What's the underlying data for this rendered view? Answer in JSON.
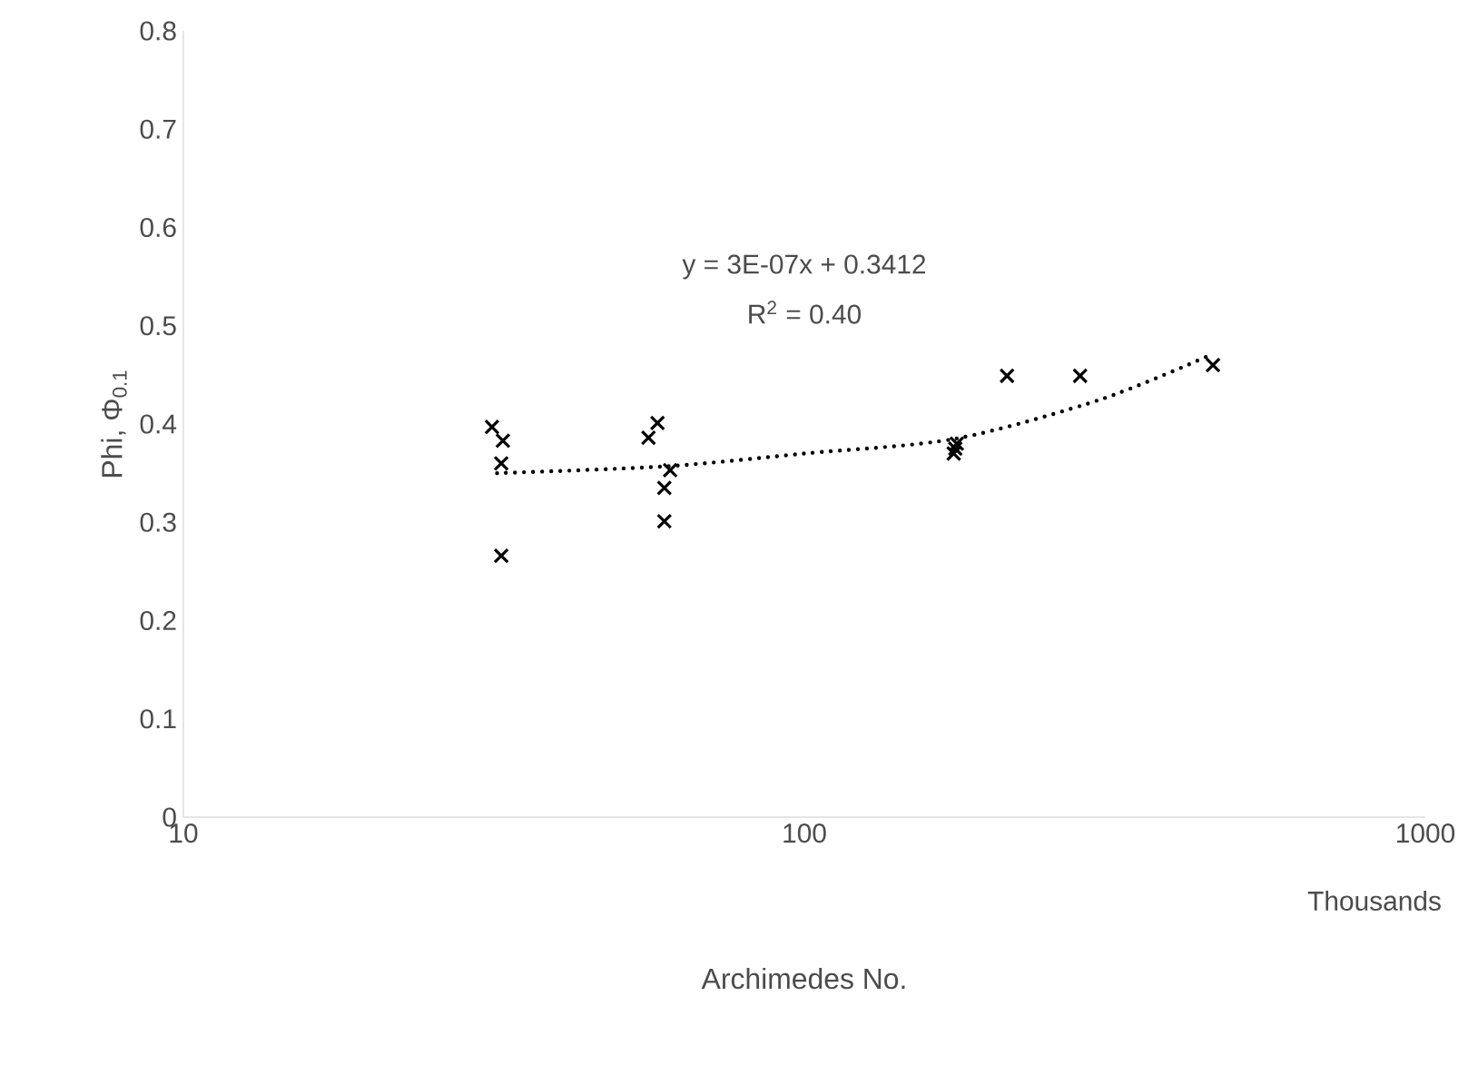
{
  "chart_data": {
    "type": "scatter",
    "xlabel": "Archimedes No.",
    "ylabel": "Phi, Φ$_{0.1}$",
    "log": "x",
    "xlim": [
      10,
      1000
    ],
    "xticks": [
      10,
      100,
      1000
    ],
    "ylim": [
      0,
      0.8
    ],
    "yticks": [
      0,
      0.1,
      0.2,
      0.3,
      0.4,
      0.5,
      0.6,
      0.7,
      0.8
    ],
    "marker": "cross",
    "grid": false,
    "annotations": [
      "Thousands",
      "y = 3E-07x + 0.3412",
      "R$^{2}$ = 0.40"
    ],
    "series": [
      {
        "color": "#000000",
        "x": [
          31.4,
          32.7,
          32.5,
          32.5,
          56.1,
          58,
          60.8,
          59.5,
          59.5,
          175,
          176,
          174,
          212,
          278,
          455
        ],
        "values": [
          0.397,
          0.383,
          0.36,
          0.266,
          0.386,
          0.401,
          0.353,
          0.335,
          0.301,
          0.375,
          0.38,
          0.37,
          0.449,
          0.449,
          0.46
        ]
      },
      {
        "type": "line",
        "line_style": "dotted",
        "marker": "none",
        "color": "#000000",
        "x": [
          32,
          60,
          100,
          175,
          300,
          450
        ],
        "values": [
          0.35,
          0.357,
          0.37,
          0.385,
          0.425,
          0.47
        ]
      }
    ]
  }
}
